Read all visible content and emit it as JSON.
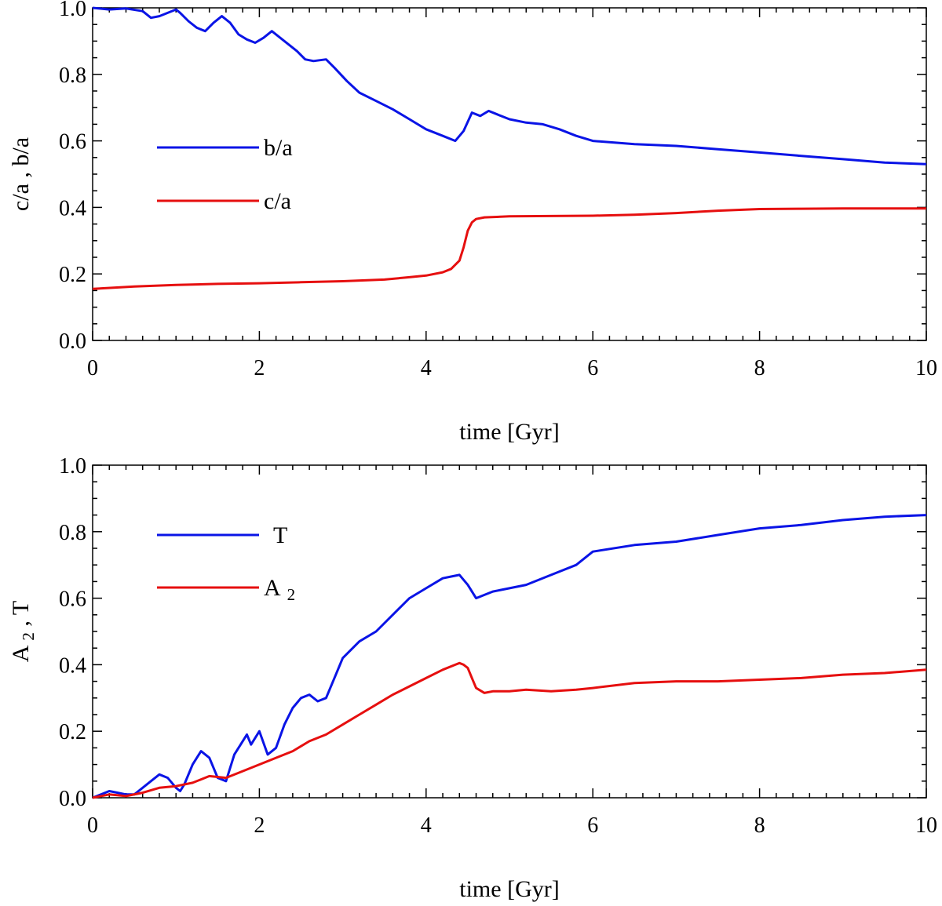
{
  "chart_data": [
    {
      "type": "line",
      "xlabel": "time [Gyr]",
      "ylabel": "c/a ,  b/a",
      "xlim": [
        0,
        10
      ],
      "ylim": [
        0,
        1
      ],
      "xticks": [
        "0",
        "2",
        "4",
        "6",
        "8",
        "10"
      ],
      "yticks": [
        "0.0",
        "0.2",
        "0.4",
        "0.6",
        "0.8",
        "1.0"
      ],
      "grid": false,
      "legend_position": "middle-left",
      "series": [
        {
          "name": "b/a",
          "color": "#0a14e6",
          "x": [
            0,
            0.2,
            0.4,
            0.6,
            0.7,
            0.8,
            0.9,
            1.0,
            1.05,
            1.15,
            1.25,
            1.35,
            1.45,
            1.55,
            1.65,
            1.75,
            1.85,
            1.95,
            2.05,
            2.15,
            2.3,
            2.45,
            2.55,
            2.65,
            2.8,
            2.9,
            3.05,
            3.2,
            3.4,
            3.6,
            3.8,
            4.0,
            4.2,
            4.35,
            4.45,
            4.55,
            4.65,
            4.75,
            4.85,
            5.0,
            5.2,
            5.4,
            5.6,
            5.8,
            6.0,
            6.5,
            7.0,
            7.5,
            8.0,
            8.5,
            9.0,
            9.5,
            10.0
          ],
          "values": [
            1.0,
            0.995,
            0.998,
            0.99,
            0.97,
            0.975,
            0.985,
            0.995,
            0.985,
            0.96,
            0.94,
            0.93,
            0.955,
            0.975,
            0.955,
            0.92,
            0.905,
            0.895,
            0.91,
            0.93,
            0.9,
            0.87,
            0.845,
            0.84,
            0.845,
            0.82,
            0.78,
            0.745,
            0.72,
            0.695,
            0.665,
            0.635,
            0.615,
            0.6,
            0.63,
            0.685,
            0.675,
            0.69,
            0.68,
            0.665,
            0.655,
            0.65,
            0.635,
            0.615,
            0.6,
            0.59,
            0.585,
            0.575,
            0.565,
            0.555,
            0.545,
            0.535,
            0.53
          ]
        },
        {
          "name": "c/a",
          "color": "#e60f0f",
          "x": [
            0,
            0.5,
            1.0,
            1.5,
            2.0,
            2.5,
            3.0,
            3.5,
            3.8,
            4.0,
            4.2,
            4.3,
            4.4,
            4.45,
            4.5,
            4.55,
            4.6,
            4.7,
            5.0,
            5.5,
            6.0,
            6.5,
            7.0,
            7.5,
            8.0,
            8.5,
            9.0,
            9.5,
            10.0
          ],
          "values": [
            0.155,
            0.162,
            0.167,
            0.17,
            0.172,
            0.175,
            0.178,
            0.183,
            0.19,
            0.195,
            0.205,
            0.215,
            0.24,
            0.28,
            0.33,
            0.355,
            0.365,
            0.37,
            0.373,
            0.374,
            0.375,
            0.378,
            0.383,
            0.39,
            0.395,
            0.396,
            0.397,
            0.397,
            0.397
          ]
        }
      ]
    },
    {
      "type": "line",
      "xlabel": "time [Gyr]",
      "ylabel": "A ₂ ,  T",
      "ylabel_main": "A",
      "ylabel_sub": "2",
      "ylabel_rest": " ,  T",
      "xlim": [
        0,
        10
      ],
      "ylim": [
        0,
        1
      ],
      "xticks": [
        "0",
        "2",
        "4",
        "6",
        "8",
        "10"
      ],
      "yticks": [
        "0.0",
        "0.2",
        "0.4",
        "0.6",
        "0.8",
        "1.0"
      ],
      "grid": false,
      "legend_position": "upper-left",
      "series": [
        {
          "name": "T",
          "color": "#0a14e6",
          "x": [
            0,
            0.1,
            0.2,
            0.3,
            0.4,
            0.5,
            0.6,
            0.7,
            0.8,
            0.9,
            1.0,
            1.05,
            1.1,
            1.2,
            1.3,
            1.4,
            1.5,
            1.6,
            1.7,
            1.8,
            1.85,
            1.9,
            2.0,
            2.1,
            2.2,
            2.3,
            2.4,
            2.5,
            2.6,
            2.7,
            2.8,
            2.9,
            3.0,
            3.2,
            3.4,
            3.6,
            3.8,
            4.0,
            4.2,
            4.3,
            4.4,
            4.5,
            4.6,
            4.7,
            4.8,
            5.0,
            5.2,
            5.5,
            5.8,
            6.0,
            6.5,
            7.0,
            7.5,
            8.0,
            8.5,
            9.0,
            9.5,
            10.0
          ],
          "values": [
            0.0,
            0.01,
            0.02,
            0.015,
            0.01,
            0.01,
            0.03,
            0.05,
            0.07,
            0.06,
            0.03,
            0.02,
            0.04,
            0.1,
            0.14,
            0.12,
            0.06,
            0.05,
            0.13,
            0.17,
            0.19,
            0.16,
            0.2,
            0.13,
            0.15,
            0.22,
            0.27,
            0.3,
            0.31,
            0.29,
            0.3,
            0.36,
            0.42,
            0.47,
            0.5,
            0.55,
            0.6,
            0.63,
            0.66,
            0.665,
            0.67,
            0.64,
            0.6,
            0.61,
            0.62,
            0.63,
            0.64,
            0.67,
            0.7,
            0.74,
            0.76,
            0.77,
            0.79,
            0.81,
            0.82,
            0.835,
            0.845,
            0.85
          ]
        },
        {
          "name": "A 2",
          "name_main": "A",
          "name_sub": "2",
          "color": "#e60f0f",
          "x": [
            0,
            0.2,
            0.4,
            0.6,
            0.8,
            1.0,
            1.2,
            1.4,
            1.6,
            1.8,
            2.0,
            2.2,
            2.4,
            2.6,
            2.8,
            3.0,
            3.2,
            3.4,
            3.6,
            3.8,
            4.0,
            4.2,
            4.35,
            4.4,
            4.45,
            4.5,
            4.55,
            4.6,
            4.7,
            4.8,
            5.0,
            5.2,
            5.5,
            5.8,
            6.0,
            6.5,
            7.0,
            7.5,
            8.0,
            8.5,
            9.0,
            9.5,
            10.0
          ],
          "values": [
            0.0,
            0.01,
            0.005,
            0.015,
            0.03,
            0.035,
            0.045,
            0.065,
            0.06,
            0.08,
            0.1,
            0.12,
            0.14,
            0.17,
            0.19,
            0.22,
            0.25,
            0.28,
            0.31,
            0.335,
            0.36,
            0.385,
            0.4,
            0.405,
            0.4,
            0.39,
            0.36,
            0.33,
            0.315,
            0.32,
            0.32,
            0.325,
            0.32,
            0.325,
            0.33,
            0.345,
            0.35,
            0.35,
            0.355,
            0.36,
            0.37,
            0.375,
            0.385
          ]
        }
      ]
    }
  ]
}
